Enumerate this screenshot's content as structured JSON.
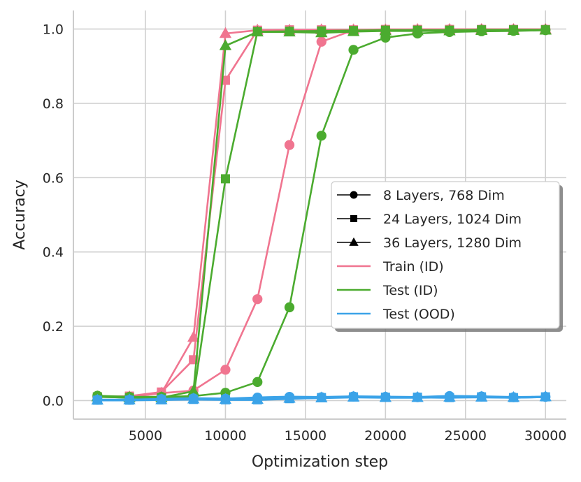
{
  "chart_data": {
    "type": "line",
    "xlabel": "Optimization step",
    "ylabel": "Accuracy",
    "xlim": [
      500,
      31300
    ],
    "ylim": [
      -0.05,
      1.05
    ],
    "xticks": [
      5000,
      10000,
      15000,
      20000,
      25000,
      30000
    ],
    "xtick_labels": [
      "5000",
      "10000",
      "15000",
      "20000",
      "25000",
      "30000"
    ],
    "yticks": [
      0.0,
      0.2,
      0.4,
      0.6,
      0.8,
      1.0
    ],
    "ytick_labels": [
      "0.0",
      "0.2",
      "0.4",
      "0.6",
      "0.8",
      "1.0"
    ],
    "grid": true,
    "legend_position": "center-right",
    "x": [
      2000,
      4000,
      6000,
      8000,
      10000,
      12000,
      14000,
      16000,
      18000,
      20000,
      22000,
      24000,
      26000,
      28000,
      30000
    ],
    "legend": [
      {
        "label": "8 Layers, 768 Dim",
        "kind": "marker",
        "marker": "circle",
        "color": "#000000"
      },
      {
        "label": "24 Layers, 1024 Dim",
        "kind": "marker",
        "marker": "square",
        "color": "#000000"
      },
      {
        "label": "36 Layers, 1280 Dim",
        "kind": "marker",
        "marker": "triangle",
        "color": "#000000"
      },
      {
        "label": "Train (ID)",
        "kind": "line",
        "color": "#f07590"
      },
      {
        "label": "Test (ID)",
        "kind": "line",
        "color": "#4bab2f"
      },
      {
        "label": "Test (OOD)",
        "kind": "line",
        "color": "#3ba3e8"
      }
    ],
    "series": [
      {
        "split": "Train (ID)",
        "model": "8 Layers, 768 Dim",
        "marker": "circle",
        "color": "#f07590",
        "values": [
          0.01,
          0.01,
          0.02,
          0.027,
          0.083,
          0.273,
          0.688,
          0.966,
          0.997,
          0.998,
          0.998,
          0.999,
          0.999,
          0.999,
          0.999
        ]
      },
      {
        "split": "Train (ID)",
        "model": "24 Layers, 1024 Dim",
        "marker": "square",
        "color": "#f07590",
        "values": [
          0.01,
          0.012,
          0.023,
          0.11,
          0.862,
          0.997,
          0.998,
          0.998,
          0.998,
          0.999,
          0.999,
          0.999,
          0.999,
          0.999,
          0.999
        ]
      },
      {
        "split": "Train (ID)",
        "model": "36 Layers, 1280 Dim",
        "marker": "triangle",
        "color": "#f07590",
        "values": [
          0.01,
          0.01,
          0.02,
          0.17,
          0.988,
          0.997,
          0.997,
          0.998,
          0.998,
          0.998,
          0.999,
          0.999,
          0.999,
          0.999,
          0.999
        ]
      },
      {
        "split": "Test (ID)",
        "model": "8 Layers, 768 Dim",
        "marker": "circle",
        "color": "#4bab2f",
        "values": [
          0.013,
          0.01,
          0.01,
          0.012,
          0.021,
          0.05,
          0.251,
          0.713,
          0.944,
          0.977,
          0.988,
          0.992,
          0.994,
          0.995,
          0.997
        ]
      },
      {
        "split": "Test (ID)",
        "model": "24 Layers, 1024 Dim",
        "marker": "square",
        "color": "#4bab2f",
        "values": [
          0.01,
          0.008,
          0.008,
          0.01,
          0.597,
          0.993,
          0.994,
          0.995,
          0.996,
          0.997,
          0.997,
          0.997,
          0.998,
          0.998,
          0.998
        ]
      },
      {
        "split": "Test (ID)",
        "model": "36 Layers, 1280 Dim",
        "marker": "triangle",
        "color": "#4bab2f",
        "values": [
          0.01,
          0.008,
          0.008,
          0.025,
          0.955,
          0.992,
          0.992,
          0.99,
          0.993,
          0.995,
          0.995,
          0.995,
          0.996,
          0.996,
          0.997
        ]
      },
      {
        "split": "Test (OOD)",
        "model": "8 Layers, 768 Dim",
        "marker": "circle",
        "color": "#3ba3e8",
        "values": [
          0.002,
          0.002,
          0.004,
          0.006,
          0.005,
          0.008,
          0.01,
          0.009,
          0.011,
          0.01,
          0.009,
          0.012,
          0.011,
          0.009,
          0.01
        ]
      },
      {
        "split": "Test (OOD)",
        "model": "24 Layers, 1024 Dim",
        "marker": "square",
        "color": "#3ba3e8",
        "values": [
          0.001,
          0.001,
          0.002,
          0.003,
          0.002,
          0.002,
          0.005,
          0.008,
          0.01,
          0.009,
          0.009,
          0.008,
          0.01,
          0.008,
          0.01
        ]
      },
      {
        "split": "Test (OOD)",
        "model": "36 Layers, 1280 Dim",
        "marker": "triangle",
        "color": "#3ba3e8",
        "values": [
          0.001,
          0.002,
          0.002,
          0.004,
          0.003,
          0.003,
          0.006,
          0.007,
          0.009,
          0.008,
          0.008,
          0.009,
          0.009,
          0.008,
          0.01
        ]
      }
    ]
  }
}
